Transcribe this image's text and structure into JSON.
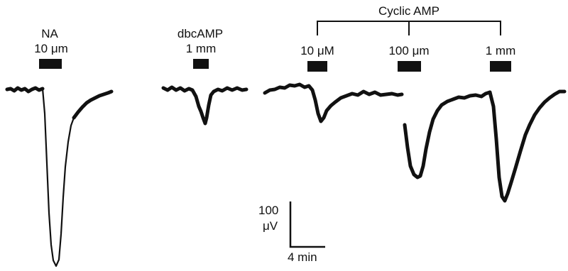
{
  "panels": {
    "na": {
      "drug": "NA",
      "dose": "10 μm"
    },
    "dbc": {
      "drug": "dbcAMP",
      "dose": "1 mm"
    }
  },
  "cyclic": {
    "title": "Cyclic AMP",
    "doses": [
      "10 μM",
      "100 μm",
      "1 mm"
    ]
  },
  "scalebar": {
    "amplitude_value": "100",
    "amplitude_unit": "μV",
    "time": "4 min"
  },
  "colors": {
    "ink": "#111111",
    "background": "#ffffff"
  }
}
